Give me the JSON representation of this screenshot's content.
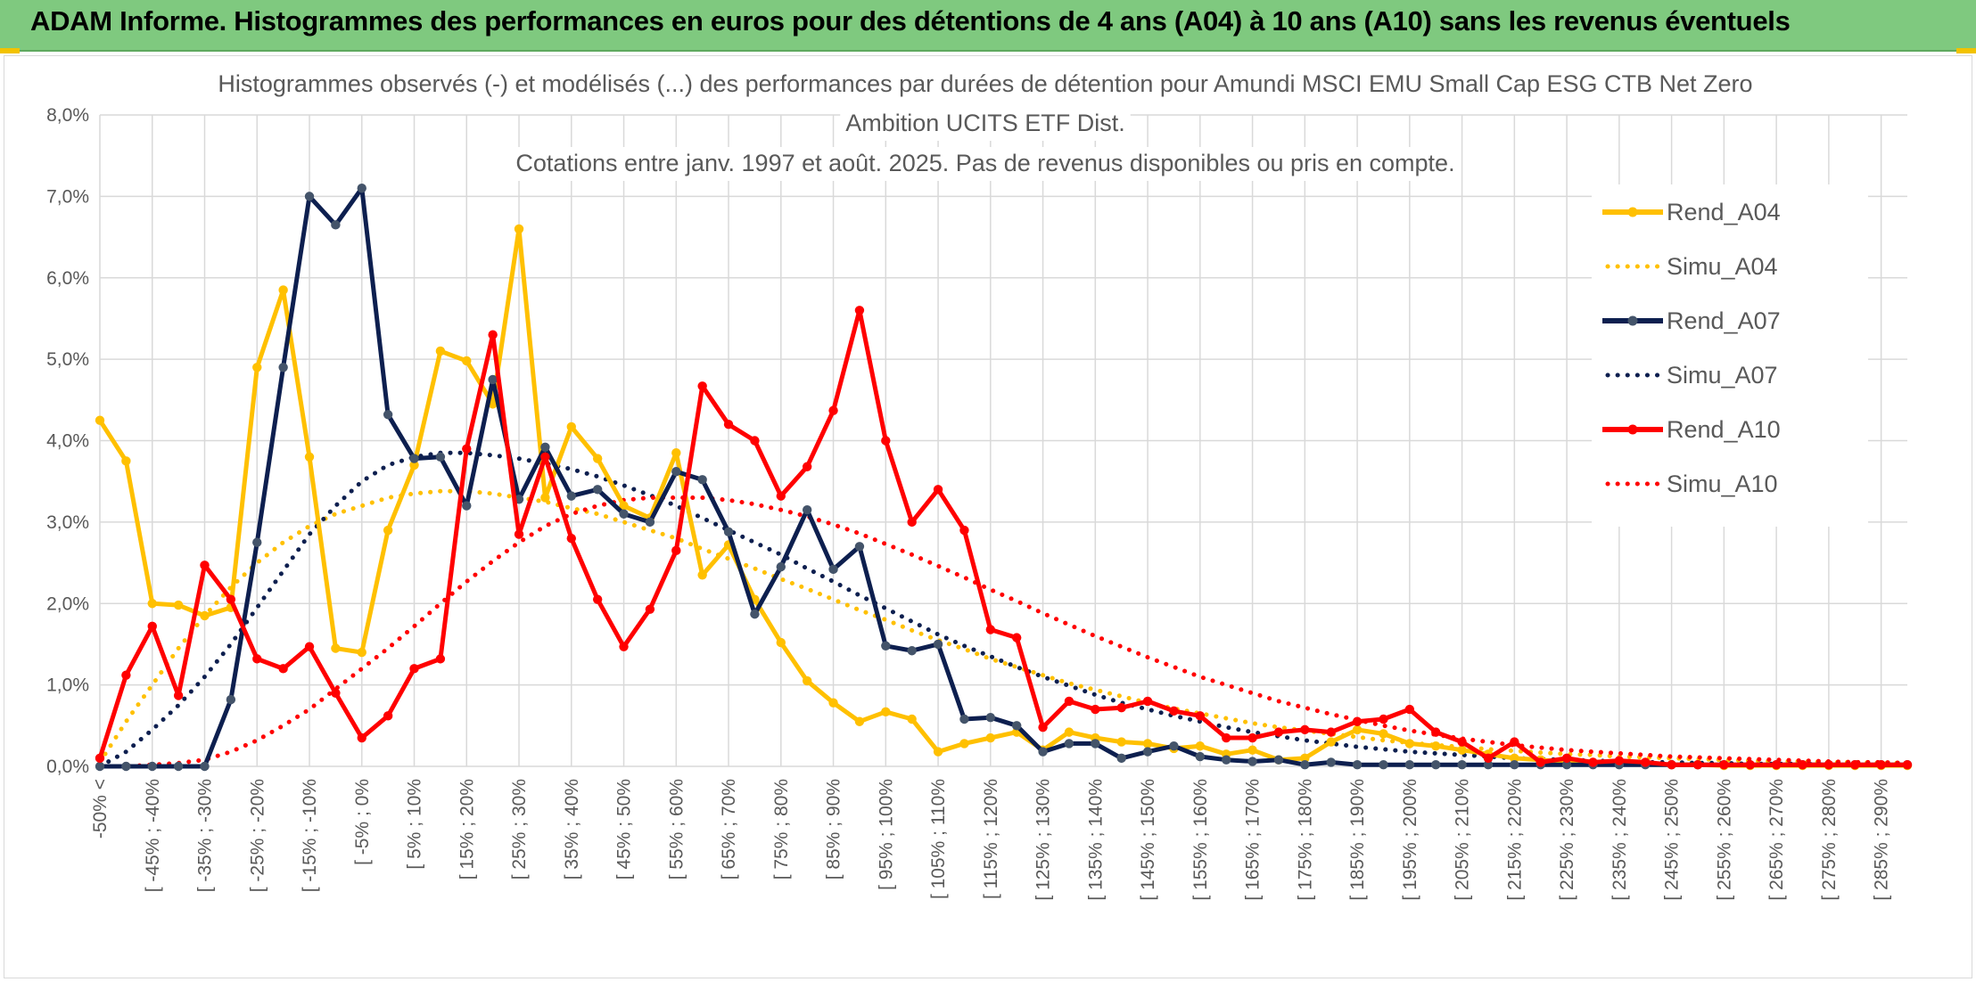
{
  "page": {
    "title": "ADAM Informe. Histogrammes des performances en euros pour des détentions de 4 ans (A04) à 10 ans (A10) sans les revenus éventuels"
  },
  "chart_data": {
    "type": "line",
    "title_lines": [
      "Histogrammes observés (-) et modélisés (...) des performances par durées de détention pour Amundi MSCI EMU Small Cap ESG CTB Net Zero",
      "Ambition UCITS ETF Dist.",
      "Cotations entre janv. 1997 et août. 2025. Pas de revenus disponibles ou pris en compte."
    ],
    "ylim": [
      0,
      8
    ],
    "yticks": [
      "0,0%",
      "1,0%",
      "2,0%",
      "3,0%",
      "4,0%",
      "5,0%",
      "6,0%",
      "7,0%",
      "8,0%"
    ],
    "grid": true,
    "legend_position": "right",
    "x_labels": [
      "-50% <",
      "[ -45% ; -40%",
      "[ -35% ; -30%",
      "[ -25% ; -20%",
      "[ -15% ; -10%",
      "[ -5% ; 0%",
      "[ 5% ; 10%",
      "[ 15% ; 20%",
      "[ 25% ; 30%",
      "[ 35% ; 40%",
      "[ 45% ; 50%",
      "[ 55% ; 60%",
      "[ 65% ; 70%",
      "[ 75% ; 80%",
      "[ 85% ; 90%",
      "[ 95% ; 100%",
      "[ 105% ; 110%",
      "[ 115% ; 120%",
      "[ 125% ; 130%",
      "[ 135% ; 140%",
      "[ 145% ; 150%",
      "[ 155% ; 160%",
      "[ 165% ; 170%",
      "[ 175% ; 180%",
      "[ 185% ; 190%",
      "[ 195% ; 200%",
      "[ 205% ; 210%",
      "[ 215% ; 220%",
      "[ 225% ; 230%",
      "[ 235% ; 240%",
      "[ 245% ; 250%",
      "[ 255% ; 260%",
      "[ 265% ; 270%",
      "[ 275% ; 280%",
      "[ 285% ; 290%"
    ],
    "bins": 70,
    "series": [
      {
        "name": "Rend_A04",
        "style": "solid",
        "color": "#ffc000",
        "values": [
          4.25,
          3.75,
          2.0,
          1.98,
          1.85,
          1.95,
          4.9,
          5.85,
          3.8,
          1.45,
          1.4,
          2.9,
          3.7,
          5.1,
          4.98,
          4.45,
          6.6,
          3.3,
          4.17,
          3.78,
          3.2,
          3.05,
          3.85,
          2.35,
          2.72,
          2.05,
          1.52,
          1.05,
          0.78,
          0.55,
          0.67,
          0.58,
          0.18,
          0.28,
          0.35,
          0.42,
          0.2,
          0.42,
          0.35,
          0.3,
          0.28,
          0.22,
          0.25,
          0.15,
          0.2,
          0.08,
          0.1,
          0.3,
          0.45,
          0.4,
          0.28,
          0.25,
          0.2,
          0.15,
          0.1,
          0.08,
          0.05,
          0.05,
          0.03,
          0.03,
          0.02,
          0.02,
          0.01,
          0.01,
          0.01,
          0.01,
          0.01,
          0.01,
          0.01,
          0.01
        ]
      },
      {
        "name": "Simu_A04",
        "style": "dotted",
        "color": "#ffc000",
        "values": [
          0.05,
          0.55,
          1.0,
          1.45,
          1.85,
          2.2,
          2.5,
          2.75,
          2.95,
          3.1,
          3.2,
          3.3,
          3.35,
          3.38,
          3.38,
          3.35,
          3.3,
          3.25,
          3.17,
          3.1,
          3.0,
          2.9,
          2.8,
          2.67,
          2.55,
          2.43,
          2.3,
          2.18,
          2.05,
          1.92,
          1.8,
          1.67,
          1.55,
          1.44,
          1.32,
          1.22,
          1.12,
          1.02,
          0.94,
          0.86,
          0.78,
          0.71,
          0.65,
          0.59,
          0.53,
          0.48,
          0.44,
          0.4,
          0.36,
          0.32,
          0.29,
          0.26,
          0.24,
          0.21,
          0.19,
          0.17,
          0.15,
          0.14,
          0.12,
          0.11,
          0.1,
          0.09,
          0.08,
          0.07,
          0.06,
          0.06,
          0.05,
          0.05,
          0.04,
          0.04
        ]
      },
      {
        "name": "Rend_A07",
        "style": "solid",
        "color": "#0d1f4f",
        "values": [
          0.0,
          0.0,
          0.0,
          0.0,
          0.0,
          0.82,
          2.75,
          4.9,
          7.0,
          6.65,
          7.1,
          4.32,
          3.78,
          3.8,
          3.2,
          4.75,
          3.28,
          3.92,
          3.32,
          3.4,
          3.1,
          3.0,
          3.62,
          3.52,
          2.88,
          1.87,
          2.45,
          3.15,
          2.42,
          2.7,
          1.48,
          1.42,
          1.5,
          0.58,
          0.6,
          0.5,
          0.18,
          0.28,
          0.28,
          0.1,
          0.18,
          0.25,
          0.12,
          0.08,
          0.06,
          0.08,
          0.02,
          0.05,
          0.02,
          0.02,
          0.02,
          0.02,
          0.02,
          0.02,
          0.02,
          0.02,
          0.02,
          0.02,
          0.02,
          0.02,
          0.02,
          0.02,
          0.02,
          0.02,
          0.02,
          0.02,
          0.02,
          0.02,
          0.02,
          0.02
        ]
      },
      {
        "name": "Simu_A07",
        "style": "dotted",
        "color": "#0d1f4f",
        "values": [
          0.0,
          0.18,
          0.45,
          0.75,
          1.1,
          1.5,
          1.95,
          2.4,
          2.85,
          3.2,
          3.5,
          3.7,
          3.8,
          3.85,
          3.85,
          3.82,
          3.78,
          3.72,
          3.65,
          3.56,
          3.45,
          3.33,
          3.2,
          3.05,
          2.9,
          2.75,
          2.6,
          2.43,
          2.27,
          2.1,
          1.94,
          1.78,
          1.62,
          1.48,
          1.35,
          1.22,
          1.1,
          0.99,
          0.88,
          0.78,
          0.7,
          0.62,
          0.55,
          0.48,
          0.42,
          0.37,
          0.32,
          0.28,
          0.24,
          0.21,
          0.18,
          0.16,
          0.14,
          0.12,
          0.1,
          0.09,
          0.08,
          0.07,
          0.06,
          0.05,
          0.05,
          0.04,
          0.04,
          0.03,
          0.03,
          0.03,
          0.02,
          0.02,
          0.02,
          0.02
        ]
      },
      {
        "name": "Rend_A10",
        "style": "solid",
        "color": "#ff0000",
        "values": [
          0.1,
          1.12,
          1.72,
          0.87,
          2.47,
          2.05,
          1.32,
          1.2,
          1.47,
          0.9,
          0.35,
          0.62,
          1.2,
          1.32,
          3.9,
          5.3,
          2.85,
          3.8,
          2.8,
          2.05,
          1.47,
          1.93,
          2.65,
          4.67,
          4.2,
          4.0,
          3.32,
          3.68,
          4.37,
          5.6,
          4.0,
          3.0,
          3.4,
          2.9,
          1.68,
          1.58,
          0.48,
          0.8,
          0.7,
          0.72,
          0.8,
          0.68,
          0.62,
          0.35,
          0.35,
          0.42,
          0.45,
          0.42,
          0.55,
          0.58,
          0.7,
          0.42,
          0.3,
          0.1,
          0.3,
          0.05,
          0.1,
          0.05,
          0.07,
          0.05,
          0.02,
          0.02,
          0.02,
          0.02,
          0.02,
          0.02,
          0.02,
          0.02,
          0.02,
          0.02
        ]
      },
      {
        "name": "Simu_A10",
        "style": "dotted",
        "color": "#ff0000",
        "values": [
          0.0,
          0.0,
          0.02,
          0.04,
          0.08,
          0.18,
          0.32,
          0.5,
          0.7,
          0.95,
          1.2,
          1.45,
          1.72,
          2.0,
          2.27,
          2.52,
          2.75,
          2.95,
          3.1,
          3.2,
          3.27,
          3.3,
          3.3,
          3.3,
          3.27,
          3.22,
          3.15,
          3.07,
          2.97,
          2.86,
          2.73,
          2.6,
          2.46,
          2.32,
          2.17,
          2.03,
          1.88,
          1.74,
          1.6,
          1.47,
          1.34,
          1.22,
          1.1,
          1.0,
          0.9,
          0.8,
          0.72,
          0.64,
          0.57,
          0.5,
          0.44,
          0.39,
          0.34,
          0.3,
          0.26,
          0.23,
          0.2,
          0.18,
          0.16,
          0.14,
          0.12,
          0.11,
          0.1,
          0.09,
          0.08,
          0.07,
          0.06,
          0.05,
          0.05,
          0.04
        ]
      }
    ]
  }
}
